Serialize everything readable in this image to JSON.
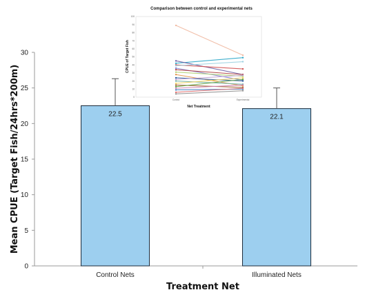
{
  "chart_data": [
    {
      "type": "bar",
      "categories": [
        "Control Nets",
        "Illuminated Nets"
      ],
      "values": [
        22.5,
        22.1
      ],
      "value_labels": [
        "22.5",
        "22.1"
      ],
      "error_upper": [
        26.3,
        25.0
      ],
      "xlabel": "Treatment Net",
      "ylabel": "Mean CPUE (Target Fish/24hrs*200m)",
      "ylim": [
        0,
        30
      ],
      "yticks": [
        "0",
        "5",
        "10",
        "15",
        "20",
        "25",
        "30"
      ],
      "bar_color": "#9dcfef",
      "bar_edge_color": "#1b2a3a",
      "grid": false
    },
    {
      "type": "line",
      "title": "Comparison between control and experimental nets",
      "xlabel": "Net Treatment",
      "ylabel": "CPUE of Target Fish",
      "categories": [
        "Control",
        "Experimental"
      ],
      "ylim": [
        0,
        100
      ],
      "yticks": [
        "0",
        "10",
        "20",
        "30",
        "40",
        "50",
        "60",
        "70",
        "80",
        "90",
        "100"
      ],
      "series": [
        {
          "values": [
            89,
            52
          ],
          "color": "#f0b8a0"
        },
        {
          "values": [
            42,
            49
          ],
          "color": "#2aa6c8"
        },
        {
          "values": [
            45,
            28
          ],
          "color": "#6a5aa0"
        },
        {
          "values": [
            40,
            35
          ],
          "color": "#d05050"
        },
        {
          "values": [
            39,
            44
          ],
          "color": "#9ad0e0"
        },
        {
          "values": [
            36,
            21
          ],
          "color": "#8080d0"
        },
        {
          "values": [
            34,
            28
          ],
          "color": "#b04040"
        },
        {
          "values": [
            31,
            26
          ],
          "color": "#b0d070"
        },
        {
          "values": [
            28,
            14
          ],
          "color": "#e09040"
        },
        {
          "values": [
            24,
            20
          ],
          "color": "#3060a0"
        },
        {
          "values": [
            22,
            27
          ],
          "color": "#c0a0d0"
        },
        {
          "values": [
            20,
            16
          ],
          "color": "#70b0a0"
        },
        {
          "values": [
            17,
            24
          ],
          "color": "#f0d060"
        },
        {
          "values": [
            15,
            12
          ],
          "color": "#a06030"
        },
        {
          "values": [
            13,
            22
          ],
          "color": "#60a040"
        },
        {
          "values": [
            11,
            15
          ],
          "color": "#d080b0"
        },
        {
          "values": [
            9,
            10
          ],
          "color": "#4080c0"
        },
        {
          "values": [
            6,
            11
          ],
          "color": "#e07070"
        },
        {
          "values": [
            4,
            8
          ],
          "color": "#909090"
        }
      ],
      "grid": false
    }
  ]
}
